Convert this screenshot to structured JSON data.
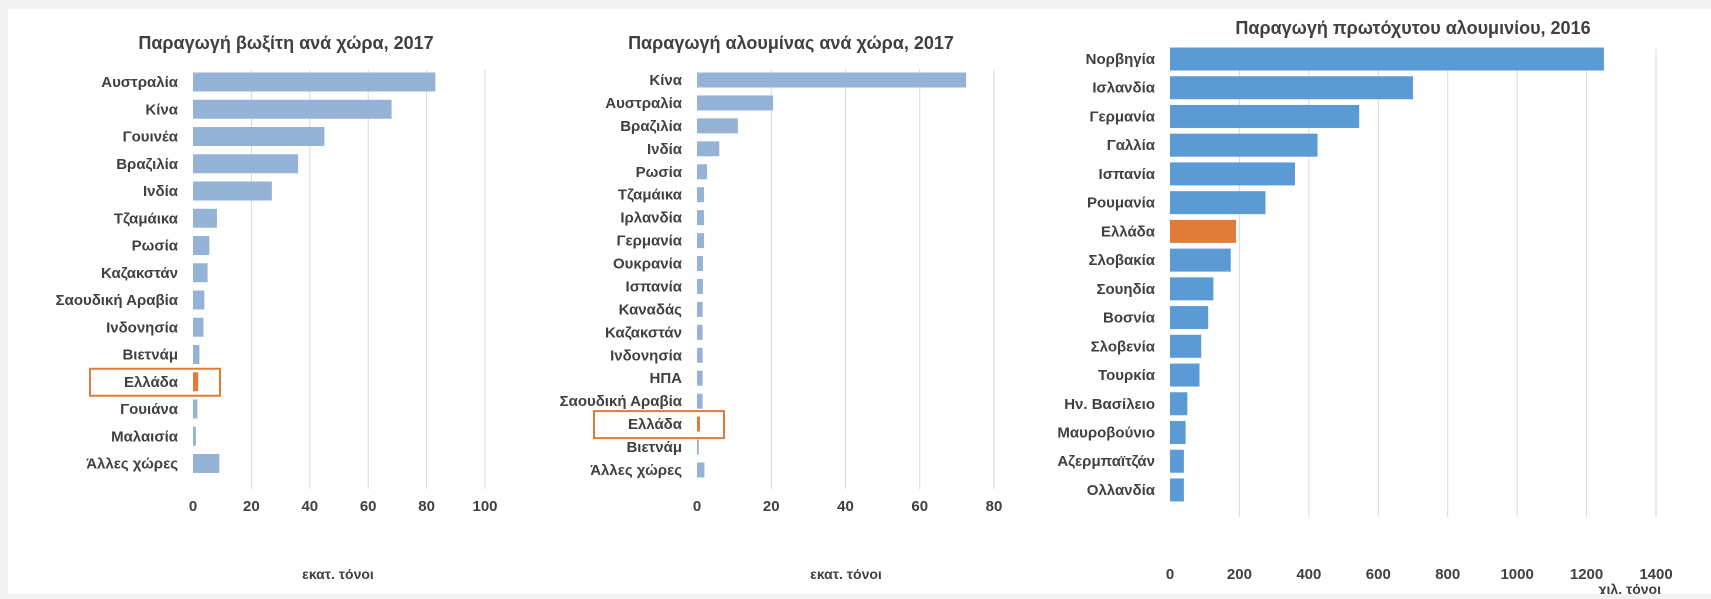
{
  "chart_data": [
    {
      "type": "bar",
      "orientation": "horizontal",
      "title": "Παραγωγή βωξίτη ανά χώρα, 2017",
      "xlabel": "εκατ. τόνοι",
      "categories": [
        "Αυστραλία",
        "Κίνα",
        "Γουινέα",
        "Βραζιλία",
        "Ινδία",
        "Τζαμάικα",
        "Ρωσία",
        "Καζακστάν",
        "Σαουδική Αραβία",
        "Ινδονησία",
        "Βιετνάμ",
        "Ελλάδα",
        "Γουιάνα",
        "Μαλαισία",
        "Άλλες χώρες"
      ],
      "values": [
        83,
        68,
        45,
        36,
        27,
        8.2,
        5.6,
        5,
        3.9,
        3.6,
        2.2,
        1.8,
        1.5,
        1,
        9
      ],
      "xlim": [
        0,
        100
      ],
      "xticks": [
        0,
        20,
        40,
        60,
        80,
        100
      ],
      "grid": true,
      "bar_color": "#95b3d7",
      "highlight": "Ελλάδα",
      "highlight_style": "outlined box",
      "highlight_color": "#e07b39"
    },
    {
      "type": "bar",
      "orientation": "horizontal",
      "title": "Παραγωγή αλουμίνας ανά χώρα, 2017",
      "xlabel": "εκατ. τόνοι",
      "categories": [
        "Κίνα",
        "Αυστραλία",
        "Βραζιλία",
        "Ινδία",
        "Ρωσία",
        "Τζαμάικα",
        "Ιρλανδία",
        "Γερμανία",
        "Ουκρανία",
        "Ισπανία",
        "Καναδάς",
        "Καζακστάν",
        "Ινδονησία",
        "ΗΠΑ",
        "Σαουδική Αραβία",
        "Ελλάδα",
        "Βιετνάμ",
        "Άλλες χώρες"
      ],
      "values": [
        72.5,
        20.5,
        11,
        6,
        2.7,
        1.9,
        1.9,
        1.9,
        1.6,
        1.6,
        1.5,
        1.5,
        1.5,
        1.5,
        1.5,
        0.8,
        0.5,
        2
      ],
      "xlim": [
        0,
        80
      ],
      "xticks": [
        0,
        20,
        40,
        60,
        80
      ],
      "grid": true,
      "bar_color": "#95b3d7",
      "highlight": "Ελλάδα",
      "highlight_style": "outlined box",
      "highlight_color": "#e07b39"
    },
    {
      "type": "bar",
      "orientation": "horizontal",
      "title": "Παραγωγή πρωτόχυτου αλουμινίου, 2016",
      "xlabel": "χιλ. τόνοι",
      "categories": [
        "Νορβηγία",
        "Ισλανδία",
        "Γερμανία",
        "Γαλλία",
        "Ισπανία",
        "Ρουμανία",
        "Ελλάδα",
        "Σλοβακία",
        "Σουηδία",
        "Βοσνία",
        "Σλοβενία",
        "Τουρκία",
        "Ην. Βασίλειο",
        "Μαυροβούνιο",
        "Αζερμπαϊτζάν",
        "Ολλανδία"
      ],
      "values": [
        1250,
        700,
        545,
        425,
        360,
        275,
        190,
        175,
        125,
        110,
        90,
        85,
        50,
        45,
        40,
        40
      ],
      "xlim": [
        0,
        1400
      ],
      "xticks": [
        0,
        200,
        400,
        600,
        800,
        1000,
        1200,
        1400
      ],
      "grid": true,
      "bar_color": "#5b9bd5",
      "highlight": "Ελλάδα",
      "highlight_style": "filled bar",
      "highlight_color": "#e07b39"
    }
  ]
}
